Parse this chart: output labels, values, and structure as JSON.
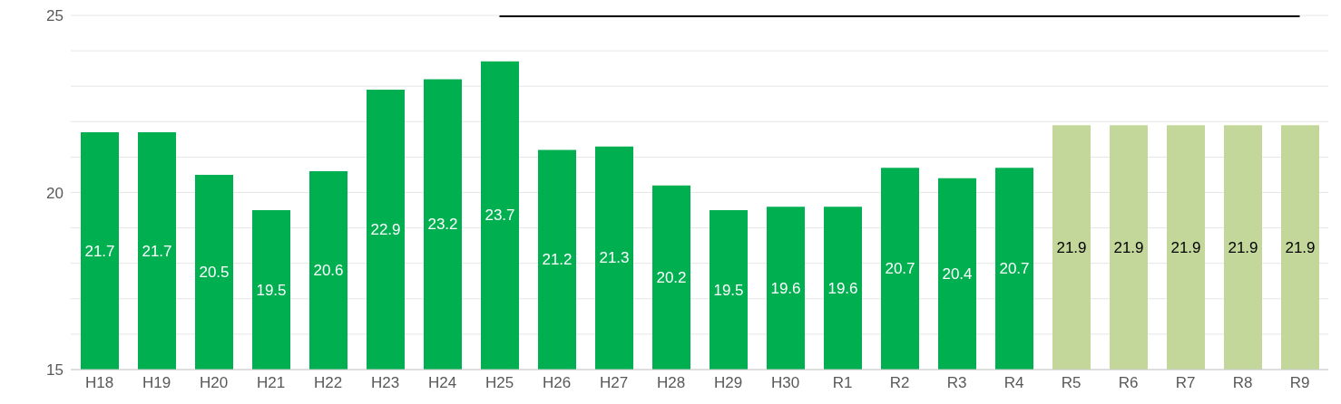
{
  "chart_data": {
    "type": "bar",
    "categories": [
      "H18",
      "H19",
      "H20",
      "H21",
      "H22",
      "H23",
      "H24",
      "H25",
      "H26",
      "H27",
      "H28",
      "H29",
      "H30",
      "R1",
      "R2",
      "R3",
      "R4",
      "R5",
      "R6",
      "R7",
      "R8",
      "R9"
    ],
    "series": [
      {
        "value_labels": [
          "21.7",
          "21.7",
          "20.5",
          "19.5",
          "20.6",
          "22.9",
          "23.2",
          "23.7",
          "21.2",
          "21.3",
          "20.2",
          "19.5",
          "19.6",
          "19.6",
          "20.7",
          "20.4",
          "20.7",
          "21.9",
          "21.9",
          "21.9",
          "21.9",
          "21.9"
        ],
        "values": [
          21.7,
          21.7,
          20.5,
          19.5,
          20.6,
          22.9,
          23.2,
          23.7,
          21.2,
          21.3,
          20.2,
          19.5,
          19.6,
          19.6,
          20.7,
          20.4,
          20.7,
          21.9,
          21.9,
          21.9,
          21.9,
          21.9
        ],
        "colors": [
          "#00b050",
          "#00b050",
          "#00b050",
          "#00b050",
          "#00b050",
          "#00b050",
          "#00b050",
          "#00b050",
          "#00b050",
          "#00b050",
          "#00b050",
          "#00b050",
          "#00b050",
          "#00b050",
          "#00b050",
          "#00b050",
          "#00b050",
          "#c4d79b",
          "#c4d79b",
          "#c4d79b",
          "#c4d79b",
          "#c4d79b"
        ]
      },
      {
        "type": "line",
        "color": "#000000",
        "values": [
          null,
          null,
          null,
          null,
          null,
          null,
          null,
          25,
          25,
          25,
          25,
          25,
          25,
          25,
          25,
          25,
          25,
          25,
          25,
          25,
          25,
          25
        ]
      }
    ],
    "ylim": [
      15,
      25
    ],
    "yticks": [
      15,
      {
        "value": 16,
        "label": null
      },
      {
        "value": 17,
        "label": null
      },
      {
        "value": 18,
        "label": null
      },
      {
        "value": 19,
        "label": null
      },
      20,
      {
        "value": 21,
        "label": null
      },
      {
        "value": 22,
        "label": null
      },
      {
        "value": 23,
        "label": null
      },
      {
        "value": 24,
        "label": null
      },
      25
    ],
    "grid": "y",
    "marker": "none",
    "line_style": "solid"
  }
}
